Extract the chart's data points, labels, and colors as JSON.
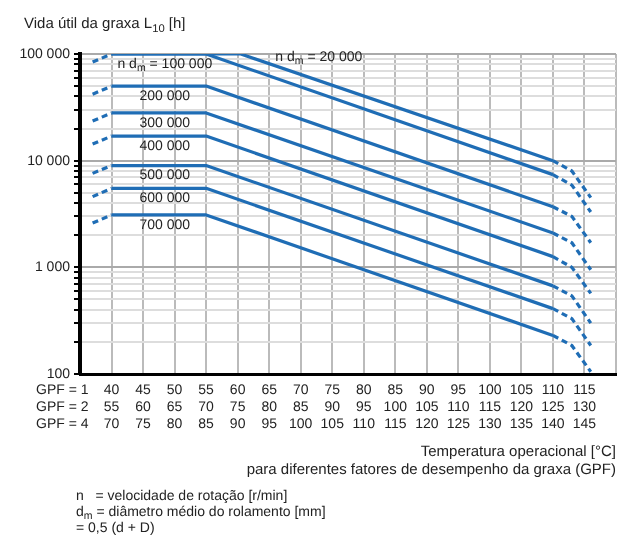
{
  "chart_data": {
    "type": "line",
    "title": "Vida útil da graxa L$_{10}$ [h]",
    "xlabel": "Temperatura operacional [°C]\npara diferentes fatores de desempenho da graxa (GPF)",
    "log": "y",
    "grid": true,
    "legend": false,
    "marker": "none",
    "xlim": [
      35,
      120
    ],
    "ylim": [
      100,
      100000
    ],
    "xticks": [
      40,
      45,
      50,
      55,
      60,
      65,
      70,
      75,
      80,
      85,
      90,
      95,
      100,
      105,
      110,
      115,
      {
        "value": 120,
        "label": null
      }
    ],
    "yticks": [
      100,
      {
        "value": 200,
        "label": null
      },
      {
        "value": 300,
        "label": null
      },
      {
        "value": 400,
        "label": null
      },
      {
        "value": 500,
        "label": null
      },
      {
        "value": 600,
        "label": null
      },
      {
        "value": 700,
        "label": null
      },
      {
        "value": 800,
        "label": null
      },
      {
        "value": 900,
        "label": null
      },
      {
        "value": 1000,
        "label": "1 000"
      },
      {
        "value": 2000,
        "label": null
      },
      {
        "value": 3000,
        "label": null
      },
      {
        "value": 4000,
        "label": null
      },
      {
        "value": 5000,
        "label": null
      },
      {
        "value": 6000,
        "label": null
      },
      {
        "value": 7000,
        "label": null
      },
      {
        "value": 8000,
        "label": null
      },
      {
        "value": 9000,
        "label": null
      },
      {
        "value": 10000,
        "label": "10 000"
      },
      {
        "value": 20000,
        "label": null
      },
      {
        "value": 30000,
        "label": null
      },
      {
        "value": 40000,
        "label": null
      },
      {
        "value": 50000,
        "label": null
      },
      {
        "value": 60000,
        "label": null
      },
      {
        "value": 70000,
        "label": null
      },
      {
        "value": 80000,
        "label": null
      },
      {
        "value": 90000,
        "label": null
      },
      {
        "value": 100000,
        "label": "100 000"
      }
    ],
    "series": [
      {
        "name": "n d$_{m}$ = 20 000",
        "color": "#1f6db5",
        "line_style": "solid",
        "x": [
          40,
          60.5,
          110
        ],
        "values": [
          100000,
          100000,
          10000
        ]
      },
      {
        "color": "#1f6db5",
        "line_style": "dashed",
        "x": [
          37,
          40
        ],
        "values": [
          84000,
          100000
        ]
      },
      {
        "color": "#1f6db5",
        "line_style": "dashed",
        "x": [
          110,
          113,
          116
        ],
        "values": [
          10000,
          8000,
          4500
        ]
      },
      {
        "name": "n d$_{m}$ = 100 000",
        "color": "#1f6db5",
        "line_style": "solid",
        "x": [
          40,
          55,
          110
        ],
        "values": [
          100000,
          100000,
          7400
        ]
      },
      {
        "color": "#1f6db5",
        "line_style": "dashed",
        "x": [
          110,
          113,
          116
        ],
        "values": [
          7400,
          5900,
          3300
        ]
      },
      {
        "name": "200 000",
        "color": "#1f6db5",
        "line_style": "solid",
        "x": [
          40,
          55,
          110
        ],
        "values": [
          50000,
          50000,
          3700
        ]
      },
      {
        "color": "#1f6db5",
        "line_style": "dashed",
        "x": [
          37,
          40
        ],
        "values": [
          42000,
          50000
        ]
      },
      {
        "color": "#1f6db5",
        "line_style": "dashed",
        "x": [
          110,
          113,
          116
        ],
        "values": [
          3700,
          3000,
          1700
        ]
      },
      {
        "name": "300 000",
        "color": "#1f6db5",
        "line_style": "solid",
        "x": [
          40,
          55,
          110
        ],
        "values": [
          28000,
          28000,
          2100
        ]
      },
      {
        "color": "#1f6db5",
        "line_style": "dashed",
        "x": [
          37,
          40
        ],
        "values": [
          23500,
          28000
        ]
      },
      {
        "color": "#1f6db5",
        "line_style": "dashed",
        "x": [
          110,
          113,
          116
        ],
        "values": [
          2100,
          1700,
          950
        ]
      },
      {
        "name": "400 000",
        "color": "#1f6db5",
        "line_style": "solid",
        "x": [
          40,
          55,
          110
        ],
        "values": [
          17000,
          17000,
          1260
        ]
      },
      {
        "color": "#1f6db5",
        "line_style": "dashed",
        "x": [
          37,
          40
        ],
        "values": [
          14300,
          17000
        ]
      },
      {
        "color": "#1f6db5",
        "line_style": "dashed",
        "x": [
          110,
          113,
          116
        ],
        "values": [
          1260,
          1000,
          570
        ]
      },
      {
        "name": "500 000",
        "color": "#1f6db5",
        "line_style": "solid",
        "x": [
          40,
          55,
          110
        ],
        "values": [
          9000,
          9000,
          670
        ]
      },
      {
        "color": "#1f6db5",
        "line_style": "dashed",
        "x": [
          37,
          40
        ],
        "values": [
          7600,
          9000
        ]
      },
      {
        "color": "#1f6db5",
        "line_style": "dashed",
        "x": [
          110,
          113,
          116
        ],
        "values": [
          670,
          540,
          300
        ]
      },
      {
        "name": "600 000",
        "color": "#1f6db5",
        "line_style": "solid",
        "x": [
          40,
          55,
          110
        ],
        "values": [
          5500,
          5500,
          410
        ]
      },
      {
        "color": "#1f6db5",
        "line_style": "dashed",
        "x": [
          37,
          40
        ],
        "values": [
          4600,
          5500
        ]
      },
      {
        "color": "#1f6db5",
        "line_style": "dashed",
        "x": [
          110,
          113,
          116
        ],
        "values": [
          410,
          330,
          185
        ]
      },
      {
        "name": "700 000",
        "color": "#1f6db5",
        "line_style": "solid",
        "x": [
          40,
          55,
          110
        ],
        "values": [
          3100,
          3100,
          230
        ]
      },
      {
        "color": "#1f6db5",
        "line_style": "dashed",
        "x": [
          37,
          40
        ],
        "values": [
          2600,
          3100
        ]
      },
      {
        "color": "#1f6db5",
        "line_style": "dashed",
        "x": [
          110,
          113,
          116
        ],
        "values": [
          230,
          185,
          105
        ]
      }
    ],
    "annotations": [
      "GPF = 1",
      "GPF = 2",
      "GPF = 4",
      "55 60 65 70 75 80 85 90 95 100 105 110 115 120 125 130",
      "70 75 80 85 90 95 100 105 110 115 120 125 130 135 140 145",
      "n   = velocidade de rotação [r/min]",
      "d$_{m}$ = diâmetro médio do rolamento [mm]",
      "= 0,5 (d + D)"
    ]
  }
}
